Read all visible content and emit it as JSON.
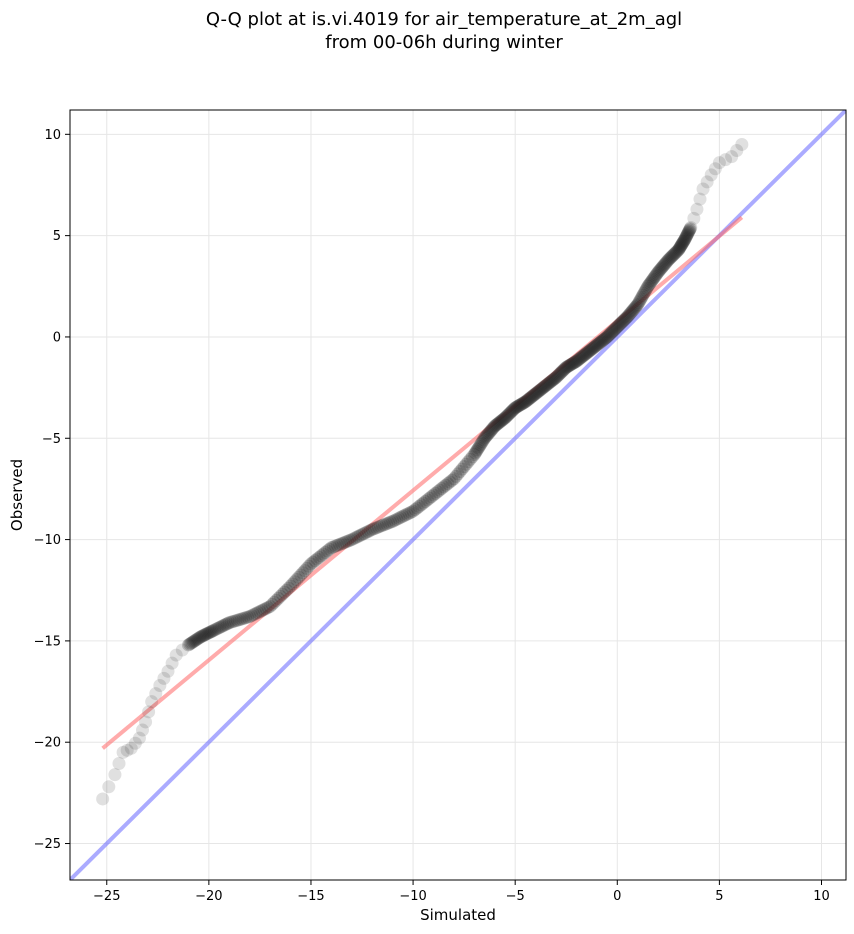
{
  "chart_data": {
    "type": "scatter",
    "title": [
      "Q-Q plot at is.vi.4019 for air_temperature_at_2m_agl",
      "from 00-06h during winter"
    ],
    "xlabel": "Simulated",
    "ylabel": "Observed",
    "xlim": [
      -26.8,
      11.2
    ],
    "ylim": [
      -26.8,
      11.2
    ],
    "xticks": [
      -25,
      -20,
      -15,
      -10,
      -5,
      0,
      5,
      10
    ],
    "yticks": [
      -25,
      -20,
      -15,
      -10,
      -5,
      0,
      5,
      10
    ],
    "xtick_labels": [
      "−25",
      "−20",
      "−15",
      "−10",
      "−5",
      "0",
      "5",
      "10"
    ],
    "ytick_labels": [
      "−25",
      "−20",
      "−15",
      "−10",
      "−5",
      "0",
      "5",
      "10"
    ],
    "grid": true,
    "colors": {
      "points": "#222222",
      "fit_line": "#ff6666",
      "identity_line": "#6666ff"
    },
    "quantile_curve": {
      "x": [
        -25.2,
        -24.6,
        -24.2,
        -23.8,
        -23.4,
        -23.1,
        -22.8,
        -22.4,
        -22.0,
        -21.6,
        -21.0,
        -20.4,
        -19.8,
        -19.0,
        -18.0,
        -17.0,
        -16.0,
        -15.0,
        -14.0,
        -13.0,
        -12.0,
        -11.0,
        -10.0,
        -9.0,
        -8.0,
        -7.0,
        -6.5,
        -6.0,
        -5.5,
        -5.0,
        -4.5,
        -4.0,
        -3.5,
        -3.0,
        -2.5,
        -2.0,
        -1.5,
        -1.0,
        -0.5,
        0.0,
        0.5,
        1.0,
        1.5,
        2.0,
        2.5,
        3.0,
        3.3,
        3.6,
        3.9,
        4.2,
        4.6,
        5.0,
        5.6,
        6.1
      ],
      "y": [
        -22.8,
        -21.6,
        -20.5,
        -20.3,
        -19.8,
        -19.0,
        -18.0,
        -17.2,
        -16.5,
        -15.7,
        -15.2,
        -14.8,
        -14.5,
        -14.1,
        -13.8,
        -13.3,
        -12.3,
        -11.2,
        -10.4,
        -10.0,
        -9.5,
        -9.1,
        -8.6,
        -7.8,
        -7.0,
        -5.8,
        -5.0,
        -4.4,
        -4.0,
        -3.5,
        -3.2,
        -2.8,
        -2.4,
        -2.0,
        -1.5,
        -1.2,
        -0.8,
        -0.4,
        0.0,
        0.5,
        1.0,
        1.6,
        2.5,
        3.2,
        3.8,
        4.3,
        4.8,
        5.4,
        6.3,
        7.3,
        8.0,
        8.6,
        8.9,
        9.5
      ]
    },
    "fit_line": {
      "x": [
        -25.2,
        6.1
      ],
      "y": [
        -20.3,
        5.9
      ]
    },
    "identity_line": {
      "x": [
        -26.8,
        11.2
      ],
      "y": [
        -26.8,
        11.2
      ]
    }
  }
}
